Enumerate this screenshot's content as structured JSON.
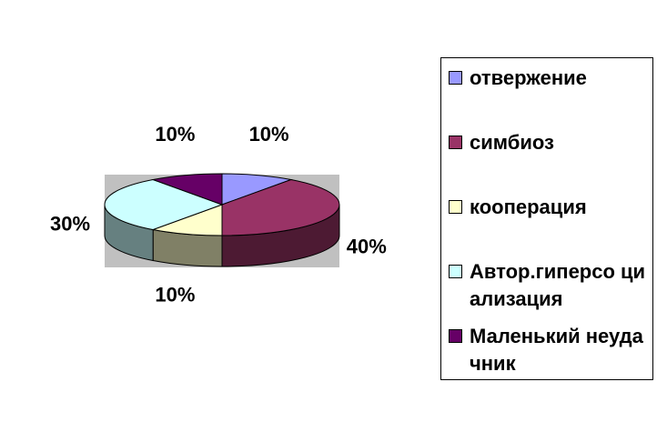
{
  "chart_data": {
    "type": "pie",
    "categories": [
      "отвержение",
      "симбиоз",
      "кооперация",
      "Автор.гиперсоциализация",
      "Маленький неудачник"
    ],
    "values": [
      10,
      40,
      10,
      30,
      10
    ],
    "data_labels": [
      "10%",
      "40%",
      "10%",
      "30%",
      "10%"
    ],
    "legend_labels": [
      "отвержение",
      "симбиоз",
      "кооперация",
      "Автор.гиперсо циализация",
      "Маленький неудачник"
    ],
    "colors": [
      "#9999ff",
      "#993366",
      "#ffffcc",
      "#ccffff",
      "#660066"
    ],
    "style": "3d-pie",
    "legend_position": "right",
    "plot_area_background": "#c0c0c0"
  }
}
